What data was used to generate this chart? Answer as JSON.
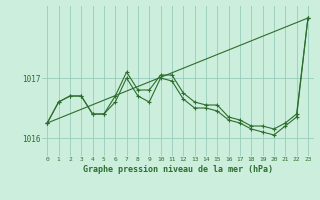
{
  "xlabel": "Graphe pression niveau de la mer (hPa)",
  "background_color": "#cceedd",
  "grid_color": "#99ccbb",
  "line_color": "#2d6e2d",
  "xlim": [
    -0.5,
    23.5
  ],
  "ylim": [
    1015.7,
    1018.2
  ],
  "yticks": [
    1016,
    1017
  ],
  "xticks": [
    0,
    1,
    2,
    3,
    4,
    5,
    6,
    7,
    8,
    9,
    10,
    11,
    12,
    13,
    14,
    15,
    16,
    17,
    18,
    19,
    20,
    21,
    22,
    23
  ],
  "line1_x": [
    0,
    1,
    2,
    3,
    4,
    5,
    6,
    7,
    8,
    9,
    10,
    11,
    12,
    13,
    14,
    15,
    16,
    17,
    18,
    19,
    20,
    21,
    22,
    23
  ],
  "line1_y": [
    1016.25,
    1016.6,
    1016.7,
    1016.7,
    1016.4,
    1016.4,
    1016.7,
    1017.1,
    1016.8,
    1016.8,
    1017.05,
    1017.05,
    1016.75,
    1016.6,
    1016.55,
    1016.55,
    1016.35,
    1016.3,
    1016.2,
    1016.2,
    1016.15,
    1016.25,
    1016.4,
    1018.0
  ],
  "line2_x": [
    0,
    1,
    2,
    3,
    4,
    5,
    6,
    7,
    8,
    9,
    10,
    11,
    12,
    13,
    14,
    15,
    16,
    17,
    18,
    19,
    20,
    21,
    22,
    23
  ],
  "line2_y": [
    1016.25,
    1016.6,
    1016.7,
    1016.7,
    1016.4,
    1016.4,
    1016.6,
    1017.0,
    1016.7,
    1016.6,
    1017.0,
    1016.95,
    1016.65,
    1016.5,
    1016.5,
    1016.45,
    1016.3,
    1016.25,
    1016.15,
    1016.1,
    1016.05,
    1016.2,
    1016.35,
    1018.0
  ],
  "line3_x": [
    0,
    23
  ],
  "line3_y": [
    1016.25,
    1018.0
  ]
}
